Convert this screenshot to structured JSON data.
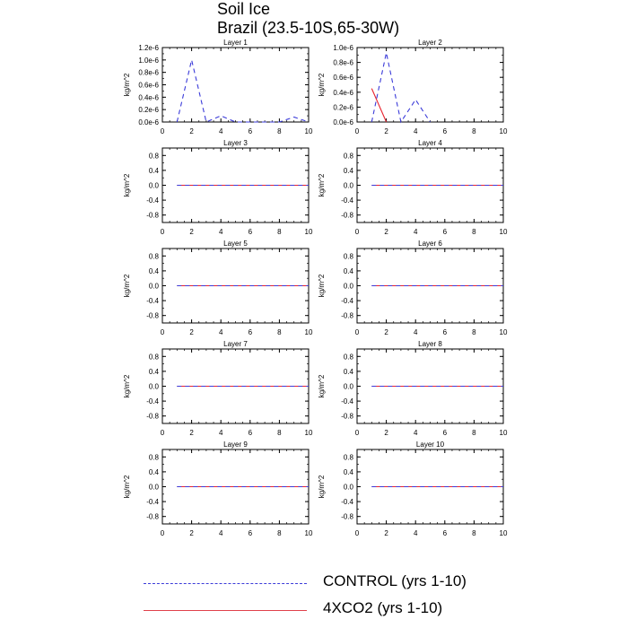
{
  "title": "Soil Ice",
  "subtitle": "Brazil (23.5-10S,65-30W)",
  "legend": {
    "control": "CONTROL (yrs 1-10)",
    "xco2": "4XCO2 (yrs 1-10)"
  },
  "colors": {
    "control": "#3b3bd9",
    "xco2": "#e8222e"
  },
  "chart_data": [
    {
      "type": "line",
      "title": "Layer 1",
      "ylabel": "kg/m^2",
      "xlim": [
        0,
        10
      ],
      "ylim": [
        0,
        1.2e-06
      ],
      "xticks": [
        "0",
        "2",
        "4",
        "6",
        "8",
        "10"
      ],
      "yticks": [
        {
          "v": 0,
          "t": "0.0e-6"
        },
        {
          "v": 2e-07,
          "t": "0.2e-6"
        },
        {
          "v": 4e-07,
          "t": "0.4e-6"
        },
        {
          "v": 6e-07,
          "t": "0.6e-6"
        },
        {
          "v": 8e-07,
          "t": "0.8e-6"
        },
        {
          "v": 1e-06,
          "t": "1.0e-6"
        },
        {
          "v": 1.2e-06,
          "t": "1.2e-6"
        }
      ],
      "series": [
        {
          "name": "CONTROL (yrs 1-10)",
          "x": [
            1,
            2,
            3,
            4,
            5,
            6,
            7,
            8,
            9,
            10
          ],
          "y": [
            0,
            1e-06,
            0,
            1e-07,
            0,
            0,
            0,
            0,
            8e-08,
            0
          ]
        },
        {
          "name": "4XCO2 (yrs 1-10)",
          "x": [],
          "y": []
        }
      ]
    },
    {
      "type": "line",
      "title": "Layer 2",
      "ylabel": "kg/m^2",
      "xlim": [
        0,
        10
      ],
      "ylim": [
        0,
        1e-06
      ],
      "xticks": [
        "0",
        "2",
        "4",
        "6",
        "8",
        "10"
      ],
      "yticks": [
        {
          "v": 0,
          "t": "0.0e-6"
        },
        {
          "v": 2e-07,
          "t": "0.2e-6"
        },
        {
          "v": 4e-07,
          "t": "0.4e-6"
        },
        {
          "v": 6e-07,
          "t": "0.6e-6"
        },
        {
          "v": 8e-07,
          "t": "0.8e-6"
        },
        {
          "v": 1e-06,
          "t": "1.0e-6"
        }
      ],
      "series": [
        {
          "name": "CONTROL (yrs 1-10)",
          "x": [
            1,
            2,
            3,
            4,
            5
          ],
          "y": [
            0,
            9.3e-07,
            0,
            3e-07,
            0
          ]
        },
        {
          "name": "4XCO2 (yrs 1-10)",
          "x": [
            1,
            2
          ],
          "y": [
            4.5e-07,
            0
          ]
        }
      ]
    },
    {
      "type": "line",
      "title": "Layer 3",
      "ylabel": "kg/m^2",
      "xlim": [
        0,
        10
      ],
      "ylim": [
        -1,
        1
      ],
      "xticks": [
        "0",
        "2",
        "4",
        "6",
        "8",
        "10"
      ],
      "yticks": [
        {
          "v": -0.8,
          "t": "-0.8"
        },
        {
          "v": -0.4,
          "t": "-0.4"
        },
        {
          "v": 0,
          "t": "0.0"
        },
        {
          "v": 0.4,
          "t": "0.4"
        },
        {
          "v": 0.8,
          "t": "0.8"
        }
      ],
      "series": [
        {
          "name": "CONTROL (yrs 1-10)",
          "x": [
            1,
            2,
            3,
            4,
            5,
            6,
            7,
            8,
            9,
            10
          ],
          "y": [
            0,
            0,
            0,
            0,
            0,
            0,
            0,
            0,
            0,
            0
          ]
        },
        {
          "name": "4XCO2 (yrs 1-10)",
          "x": [
            1,
            2,
            3,
            4,
            5,
            6,
            7,
            8,
            9,
            10
          ],
          "y": [
            0,
            0,
            0,
            0,
            0,
            0,
            0,
            0,
            0,
            0
          ]
        }
      ]
    },
    {
      "type": "line",
      "title": "Layer 4",
      "ylabel": "kg/m^2",
      "xlim": [
        0,
        10
      ],
      "ylim": [
        -1,
        1
      ],
      "xticks": [
        "0",
        "2",
        "4",
        "6",
        "8",
        "10"
      ],
      "yticks": [
        {
          "v": -0.8,
          "t": "-0.8"
        },
        {
          "v": -0.4,
          "t": "-0.4"
        },
        {
          "v": 0,
          "t": "0.0"
        },
        {
          "v": 0.4,
          "t": "0.4"
        },
        {
          "v": 0.8,
          "t": "0.8"
        }
      ],
      "series": [
        {
          "name": "CONTROL (yrs 1-10)",
          "x": [
            1,
            2,
            3,
            4,
            5,
            6,
            7,
            8,
            9,
            10
          ],
          "y": [
            0,
            0,
            0,
            0,
            0,
            0,
            0,
            0,
            0,
            0
          ]
        },
        {
          "name": "4XCO2 (yrs 1-10)",
          "x": [
            1,
            2,
            3,
            4,
            5,
            6,
            7,
            8,
            9,
            10
          ],
          "y": [
            0,
            0,
            0,
            0,
            0,
            0,
            0,
            0,
            0,
            0
          ]
        }
      ]
    },
    {
      "type": "line",
      "title": "Layer 5",
      "ylabel": "kg/m^2",
      "xlim": [
        0,
        10
      ],
      "ylim": [
        -1,
        1
      ],
      "xticks": [
        "0",
        "2",
        "4",
        "6",
        "8",
        "10"
      ],
      "yticks": [
        {
          "v": -0.8,
          "t": "-0.8"
        },
        {
          "v": -0.4,
          "t": "-0.4"
        },
        {
          "v": 0,
          "t": "0.0"
        },
        {
          "v": 0.4,
          "t": "0.4"
        },
        {
          "v": 0.8,
          "t": "0.8"
        }
      ],
      "series": [
        {
          "name": "CONTROL (yrs 1-10)",
          "x": [
            1,
            2,
            3,
            4,
            5,
            6,
            7,
            8,
            9,
            10
          ],
          "y": [
            0,
            0,
            0,
            0,
            0,
            0,
            0,
            0,
            0,
            0
          ]
        },
        {
          "name": "4XCO2 (yrs 1-10)",
          "x": [
            1,
            2,
            3,
            4,
            5,
            6,
            7,
            8,
            9,
            10
          ],
          "y": [
            0,
            0,
            0,
            0,
            0,
            0,
            0,
            0,
            0,
            0
          ]
        }
      ]
    },
    {
      "type": "line",
      "title": "Layer 6",
      "ylabel": "kg/m^2",
      "xlim": [
        0,
        10
      ],
      "ylim": [
        -1,
        1
      ],
      "xticks": [
        "0",
        "2",
        "4",
        "6",
        "8",
        "10"
      ],
      "yticks": [
        {
          "v": -0.8,
          "t": "-0.8"
        },
        {
          "v": -0.4,
          "t": "-0.4"
        },
        {
          "v": 0,
          "t": "0.0"
        },
        {
          "v": 0.4,
          "t": "0.4"
        },
        {
          "v": 0.8,
          "t": "0.8"
        }
      ],
      "series": [
        {
          "name": "CONTROL (yrs 1-10)",
          "x": [
            1,
            2,
            3,
            4,
            5,
            6,
            7,
            8,
            9,
            10
          ],
          "y": [
            0,
            0,
            0,
            0,
            0,
            0,
            0,
            0,
            0,
            0
          ]
        },
        {
          "name": "4XCO2 (yrs 1-10)",
          "x": [
            1,
            2,
            3,
            4,
            5,
            6,
            7,
            8,
            9,
            10
          ],
          "y": [
            0,
            0,
            0,
            0,
            0,
            0,
            0,
            0,
            0,
            0
          ]
        }
      ]
    },
    {
      "type": "line",
      "title": "Layer 7",
      "ylabel": "kg/m^2",
      "xlim": [
        0,
        10
      ],
      "ylim": [
        -1,
        1
      ],
      "xticks": [
        "0",
        "2",
        "4",
        "6",
        "8",
        "10"
      ],
      "yticks": [
        {
          "v": -0.8,
          "t": "-0.8"
        },
        {
          "v": -0.4,
          "t": "-0.4"
        },
        {
          "v": 0,
          "t": "0.0"
        },
        {
          "v": 0.4,
          "t": "0.4"
        },
        {
          "v": 0.8,
          "t": "0.8"
        }
      ],
      "series": [
        {
          "name": "CONTROL (yrs 1-10)",
          "x": [
            1,
            2,
            3,
            4,
            5,
            6,
            7,
            8,
            9,
            10
          ],
          "y": [
            0,
            0,
            0,
            0,
            0,
            0,
            0,
            0,
            0,
            0
          ]
        },
        {
          "name": "4XCO2 (yrs 1-10)",
          "x": [
            1,
            2,
            3,
            4,
            5,
            6,
            7,
            8,
            9,
            10
          ],
          "y": [
            0,
            0,
            0,
            0,
            0,
            0,
            0,
            0,
            0,
            0
          ]
        }
      ]
    },
    {
      "type": "line",
      "title": "Layer 8",
      "ylabel": "kg/m^2",
      "xlim": [
        0,
        10
      ],
      "ylim": [
        -1,
        1
      ],
      "xticks": [
        "0",
        "2",
        "4",
        "6",
        "8",
        "10"
      ],
      "yticks": [
        {
          "v": -0.8,
          "t": "-0.8"
        },
        {
          "v": -0.4,
          "t": "-0.4"
        },
        {
          "v": 0,
          "t": "0.0"
        },
        {
          "v": 0.4,
          "t": "0.4"
        },
        {
          "v": 0.8,
          "t": "0.8"
        }
      ],
      "series": [
        {
          "name": "CONTROL (yrs 1-10)",
          "x": [
            1,
            2,
            3,
            4,
            5,
            6,
            7,
            8,
            9,
            10
          ],
          "y": [
            0,
            0,
            0,
            0,
            0,
            0,
            0,
            0,
            0,
            0
          ]
        },
        {
          "name": "4XCO2 (yrs 1-10)",
          "x": [
            1,
            2,
            3,
            4,
            5,
            6,
            7,
            8,
            9,
            10
          ],
          "y": [
            0,
            0,
            0,
            0,
            0,
            0,
            0,
            0,
            0,
            0
          ]
        }
      ]
    },
    {
      "type": "line",
      "title": "Layer 9",
      "ylabel": "kg/m^2",
      "xlim": [
        0,
        10
      ],
      "ylim": [
        -1,
        1
      ],
      "xticks": [
        "0",
        "2",
        "4",
        "6",
        "8",
        "10"
      ],
      "yticks": [
        {
          "v": -0.8,
          "t": "-0.8"
        },
        {
          "v": -0.4,
          "t": "-0.4"
        },
        {
          "v": 0,
          "t": "0.0"
        },
        {
          "v": 0.4,
          "t": "0.4"
        },
        {
          "v": 0.8,
          "t": "0.8"
        }
      ],
      "series": [
        {
          "name": "CONTROL (yrs 1-10)",
          "x": [
            1,
            2,
            3,
            4,
            5,
            6,
            7,
            8,
            9,
            10
          ],
          "y": [
            0,
            0,
            0,
            0,
            0,
            0,
            0,
            0,
            0,
            0
          ]
        },
        {
          "name": "4XCO2 (yrs 1-10)",
          "x": [
            1,
            2,
            3,
            4,
            5,
            6,
            7,
            8,
            9,
            10
          ],
          "y": [
            0,
            0,
            0,
            0,
            0,
            0,
            0,
            0,
            0,
            0
          ]
        }
      ]
    },
    {
      "type": "line",
      "title": "Layer 10",
      "ylabel": "kg/m^2",
      "xlim": [
        0,
        10
      ],
      "ylim": [
        -1,
        1
      ],
      "xticks": [
        "0",
        "2",
        "4",
        "6",
        "8",
        "10"
      ],
      "yticks": [
        {
          "v": -0.8,
          "t": "-0.8"
        },
        {
          "v": -0.4,
          "t": "-0.4"
        },
        {
          "v": 0,
          "t": "0.0"
        },
        {
          "v": 0.4,
          "t": "0.4"
        },
        {
          "v": 0.8,
          "t": "0.8"
        }
      ],
      "series": [
        {
          "name": "CONTROL (yrs 1-10)",
          "x": [
            1,
            2,
            3,
            4,
            5,
            6,
            7,
            8,
            9,
            10
          ],
          "y": [
            0,
            0,
            0,
            0,
            0,
            0,
            0,
            0,
            0,
            0
          ]
        },
        {
          "name": "4XCO2 (yrs 1-10)",
          "x": [
            1,
            2,
            3,
            4,
            5,
            6,
            7,
            8,
            9,
            10
          ],
          "y": [
            0,
            0,
            0,
            0,
            0,
            0,
            0,
            0,
            0,
            0
          ]
        }
      ]
    }
  ]
}
